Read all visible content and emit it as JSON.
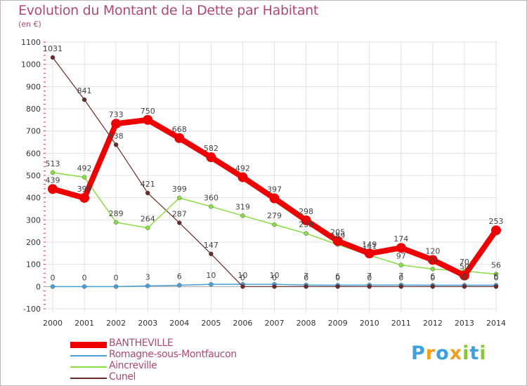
{
  "chart_data": {
    "type": "line",
    "title": "Evolution du Montant de la Dette par Habitant",
    "subtitle": "(en €)",
    "xlabel": "",
    "ylabel": "",
    "ylim": [
      -100,
      1100
    ],
    "yticks": [
      -100,
      0,
      100,
      200,
      300,
      400,
      500,
      600,
      700,
      800,
      900,
      1000,
      1100
    ],
    "categories": [
      "2000",
      "2001",
      "2002",
      "2003",
      "2004",
      "2005",
      "2006",
      "2007",
      "2008",
      "2009",
      "2010",
      "2011",
      "2012",
      "2013",
      "2014"
    ],
    "series": [
      {
        "name": "BANTHEVILLE",
        "color": "#ee0000",
        "values": [
          439,
          399,
          733,
          750,
          668,
          582,
          492,
          397,
          298,
          205,
          149,
          174,
          120,
          50,
          253
        ]
      },
      {
        "name": "Romagne-sous-Montfaucon",
        "color": "#4aa0d8",
        "values": [
          0,
          0,
          0,
          3,
          6,
          10,
          10,
          10,
          7,
          6,
          7,
          7,
          6,
          6,
          6
        ]
      },
      {
        "name": "Aincreville",
        "color": "#88dd44",
        "values": [
          513,
          492,
          289,
          264,
          399,
          360,
          319,
          279,
          239,
          189,
          141,
          97,
          79,
          70,
          56
        ]
      },
      {
        "name": "Cunel",
        "color": "#6b2a2a",
        "values": [
          1031,
          841,
          638,
          421,
          287,
          147,
          0,
          0,
          0,
          0,
          0,
          0,
          0,
          0,
          0
        ]
      }
    ],
    "legend_position": "bottom-left"
  },
  "brand": {
    "letters": [
      "P",
      "r",
      "o",
      "x",
      "i",
      "t",
      "i"
    ],
    "colors": [
      "#3ea0dd",
      "#f0a020",
      "#3ea0dd",
      "#f0a020",
      "#88c43c",
      "#3ea0dd",
      "#88c43c"
    ]
  }
}
